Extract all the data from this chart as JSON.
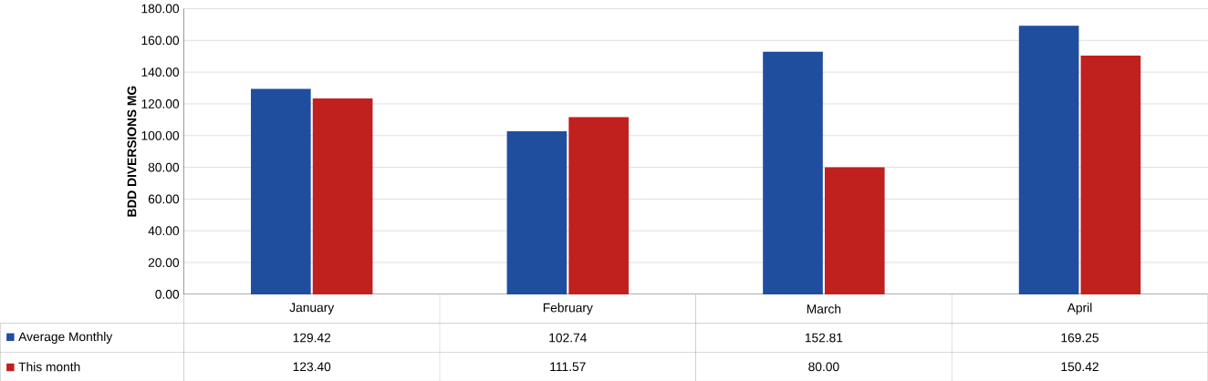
{
  "chart_data": {
    "type": "bar",
    "ylabel": "BDD DIVERSIONS MG",
    "categories": [
      "January",
      "February",
      "March",
      "April"
    ],
    "series": [
      {
        "name": "Average Monthly",
        "color": "#1f4e9e",
        "values": [
          129.42,
          102.74,
          152.81,
          169.25
        ],
        "value_labels": [
          "129.42",
          "102.74",
          "152.81",
          "169.25"
        ]
      },
      {
        "name": "This month",
        "color": "#c0201e",
        "values": [
          123.4,
          111.57,
          80.0,
          150.42
        ],
        "value_labels": [
          "123.40",
          "111.57",
          "80.00",
          "150.42"
        ]
      }
    ],
    "ylim": [
      0,
      180
    ],
    "yticks": [
      {
        "value": 0,
        "label": "0.00"
      },
      {
        "value": 20,
        "label": "20.00"
      },
      {
        "value": 40,
        "label": "40.00"
      },
      {
        "value": 60,
        "label": "60.00"
      },
      {
        "value": 80,
        "label": "80.00"
      },
      {
        "value": 100,
        "label": "100.00"
      },
      {
        "value": 120,
        "label": "120.00"
      },
      {
        "value": 140,
        "label": "140.00"
      },
      {
        "value": 160,
        "label": "160.00"
      },
      {
        "value": 180,
        "label": "180.00"
      }
    ],
    "grid": "y",
    "legend": "bottom left"
  }
}
